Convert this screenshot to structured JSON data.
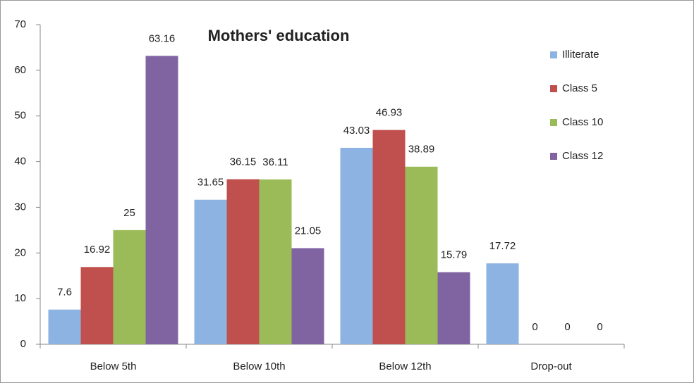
{
  "chart_data": {
    "type": "bar",
    "title": "Mothers' education",
    "categories": [
      "Below 5th",
      "Below 10th",
      "Below 12th",
      "Drop-out"
    ],
    "series": [
      {
        "name": "Illiterate",
        "color": "#8db3e2",
        "values": [
          7.6,
          31.65,
          43.03,
          17.72
        ]
      },
      {
        "name": "Class 5",
        "color": "#c0504d",
        "values": [
          16.92,
          36.15,
          46.93,
          0
        ]
      },
      {
        "name": "Class 10",
        "color": "#9bbb59",
        "values": [
          25,
          36.11,
          38.89,
          0
        ]
      },
      {
        "name": "Class 12",
        "color": "#8064a2",
        "values": [
          63.16,
          21.05,
          15.79,
          0
        ]
      }
    ],
    "ylim": [
      0,
      70
    ],
    "yticks": [
      0,
      10,
      20,
      30,
      40,
      50,
      60,
      70
    ],
    "grid": false,
    "legend": "right"
  }
}
